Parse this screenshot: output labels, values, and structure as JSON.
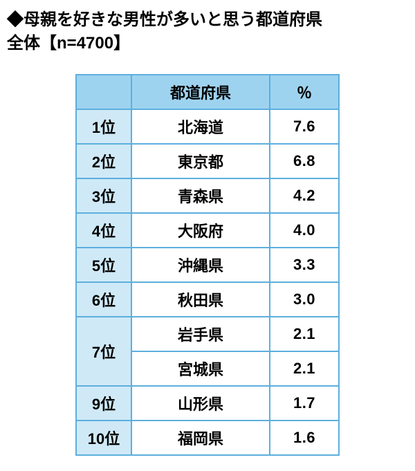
{
  "title_line1": "◆母親を好きな男性が多いと思う都道府県",
  "title_line2": "全体【n=4700】",
  "table": {
    "header_bg": "#9ed3f0",
    "rank_bg": "#cfe9f7",
    "border_color": "#5cafdd",
    "columns": {
      "pref": "都道府県",
      "pct": "％"
    },
    "rows": [
      {
        "rank": "1位",
        "pref": "北海道",
        "pct": "7.6",
        "rowspan": 1
      },
      {
        "rank": "2位",
        "pref": "東京都",
        "pct": "6.8",
        "rowspan": 1
      },
      {
        "rank": "3位",
        "pref": "青森県",
        "pct": "4.2",
        "rowspan": 1
      },
      {
        "rank": "4位",
        "pref": "大阪府",
        "pct": "4.0",
        "rowspan": 1
      },
      {
        "rank": "5位",
        "pref": "沖縄県",
        "pct": "3.3",
        "rowspan": 1
      },
      {
        "rank": "6位",
        "pref": "秋田県",
        "pct": "3.0",
        "rowspan": 1
      },
      {
        "rank": "7位",
        "pref": "岩手県",
        "pct": "2.1",
        "rowspan": 2
      },
      {
        "rank": "",
        "pref": "宮城県",
        "pct": "2.1",
        "rowspan": 0
      },
      {
        "rank": "9位",
        "pref": "山形県",
        "pct": "1.7",
        "rowspan": 1
      },
      {
        "rank": "10位",
        "pref": "福岡県",
        "pct": "1.6",
        "rowspan": 1
      }
    ]
  }
}
